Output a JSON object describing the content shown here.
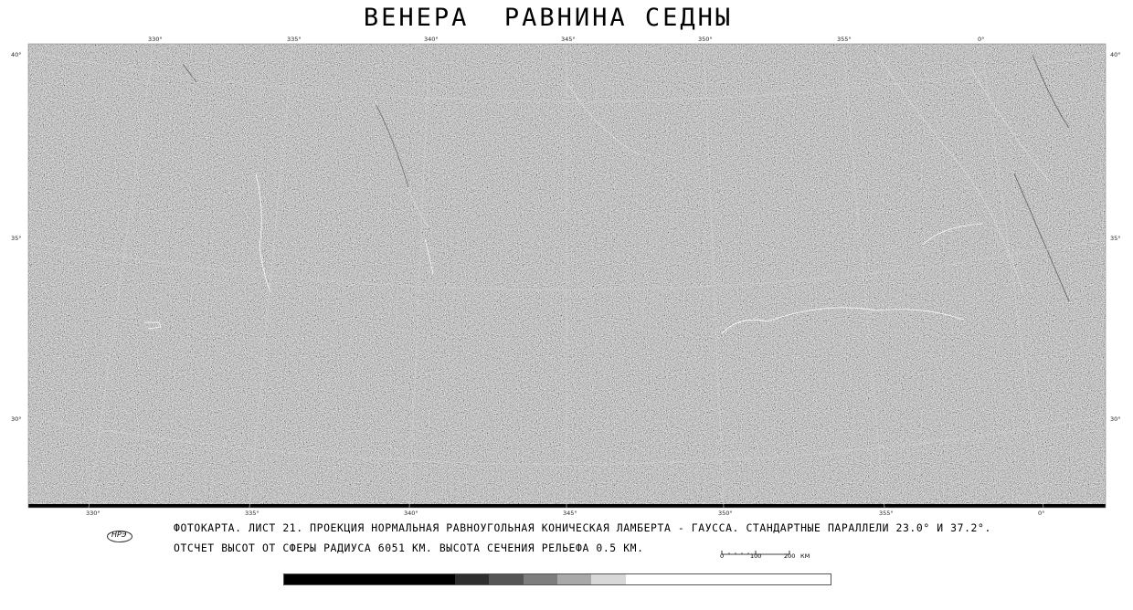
{
  "title": "ВЕНЕРА  РАВНИНА СЕДНЫ",
  "top_longitudes": [
    "330°",
    "335°",
    "340°",
    "345°",
    "350°",
    "355°",
    "0°"
  ],
  "bottom_longitudes": [
    "330°",
    "335°",
    "340°",
    "345°",
    "350°",
    "355°",
    "0°"
  ],
  "left_latitudes": [
    "40°",
    "35°",
    "30°"
  ],
  "right_latitudes": [
    "40°",
    "35°",
    "30°"
  ],
  "caption_line1": "ФОТОКАРТА. ЛИСТ 21. ПРОЕКЦИЯ НОРМАЛЬНАЯ РАВНОУГОЛЬНАЯ КОНИЧЕСКАЯ ЛАМБЕРТА - ГАУССА. СТАНДАРТНЫЕ ПАРАЛЛЕЛИ 23.0° И 37.2°.",
  "caption_line2": "ОТСЧЕТ ВЫСОТ ОТ СФЕРЫ РАДИУСА 6051 КМ. ВЫСОТА СЕЧЕНИЯ РЕЛЬЕФА 0.5 КМ.",
  "logo_text": "НРЭ",
  "scale_bar": {
    "labels": [
      "0",
      "100",
      "200"
    ],
    "unit": "КМ"
  },
  "map_colors": {
    "terrain": "#9a9a9a",
    "no_data": "#000000",
    "grid": "#cfcfcf"
  },
  "gray_scale": [
    "#000000",
    "#000000",
    "#000000",
    "#000000",
    "#000000",
    "#2e2e2e",
    "#555555",
    "#7d7d7d",
    "#a8a8a8",
    "#d8d8d8",
    "#ffffff",
    "#ffffff",
    "#ffffff",
    "#ffffff",
    "#ffffff",
    "#ffffff"
  ]
}
